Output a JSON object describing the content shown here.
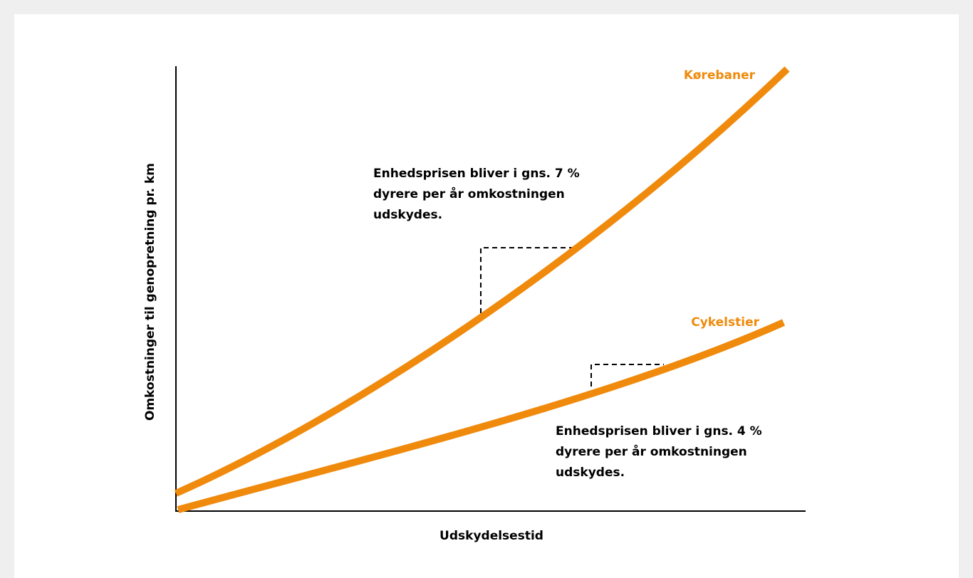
{
  "axes": {
    "x_label": "Udskydelsestid",
    "y_label": "Omkostninger til genopretning pr. km"
  },
  "curves": [
    {
      "label": "Kørebaner",
      "note": [
        "Enhedsprisen bliver i gns. 7 %",
        "dyrere per år omkostningen",
        "udskydes."
      ]
    },
    {
      "label": "Cykelstier",
      "note": [
        "Enhedsprisen bliver i gns. 4 %",
        "dyrere per år omkostningen",
        "udskydes."
      ]
    }
  ]
}
